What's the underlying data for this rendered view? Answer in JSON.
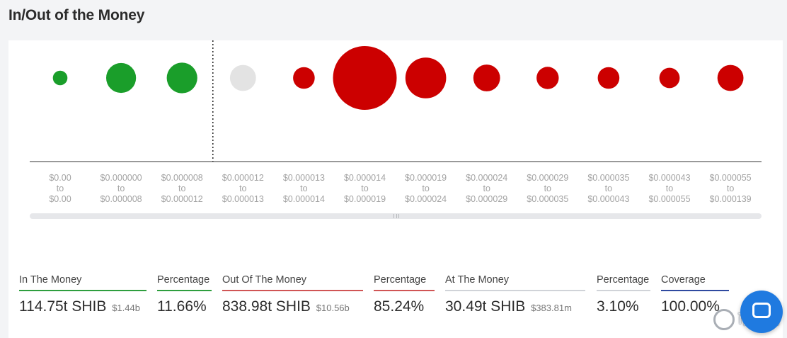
{
  "header": {
    "title": "In/Out of the Money"
  },
  "colors": {
    "in": "#1a9e2a",
    "out": "#cc0000",
    "at": "#e3e3e3"
  },
  "chart_data": {
    "type": "scatter",
    "chart_kind": "bubble",
    "x_categories": [
      {
        "from": "$0.00",
        "to": "$0.00"
      },
      {
        "from": "$0.000000",
        "to": "$0.000008"
      },
      {
        "from": "$0.000008",
        "to": "$0.000012"
      },
      {
        "from": "$0.000012",
        "to": "$0.000013"
      },
      {
        "from": "$0.000013",
        "to": "$0.000014"
      },
      {
        "from": "$0.000014",
        "to": "$0.000019"
      },
      {
        "from": "$0.000019",
        "to": "$0.000024"
      },
      {
        "from": "$0.000024",
        "to": "$0.000029"
      },
      {
        "from": "$0.000029",
        "to": "$0.000035"
      },
      {
        "from": "$0.000035",
        "to": "$0.000043"
      },
      {
        "from": "$0.000043",
        "to": "$0.000055"
      },
      {
        "from": "$0.000055",
        "to": "$0.000139"
      }
    ],
    "range_connector": "to",
    "bubble_sizes_relative": [
      0.23,
      0.47,
      0.48,
      0.41,
      0.34,
      1.0,
      0.64,
      0.42,
      0.35,
      0.34,
      0.32,
      0.41
    ],
    "bubble_status": [
      "in",
      "in",
      "in",
      "at",
      "out",
      "out",
      "out",
      "out",
      "out",
      "out",
      "out",
      "out"
    ],
    "current_price_marker_after_index": 2,
    "grid": false,
    "legend": "none"
  },
  "scrollbar": {
    "grip": "|||"
  },
  "stats": {
    "in_the_money": {
      "label": "In The Money",
      "value": "114.75t SHIB",
      "usd": "$1.44b"
    },
    "in_percentage": {
      "label": "Percentage",
      "value": "11.66%"
    },
    "out_of_the_money": {
      "label": "Out Of The Money",
      "value": "838.98t SHIB",
      "usd": "$10.56b"
    },
    "out_percentage": {
      "label": "Percentage",
      "value": "85.24%"
    },
    "at_the_money": {
      "label": "At The Money",
      "value": "30.49t SHIB",
      "usd": "$383.81m"
    },
    "at_percentage": {
      "label": "Percentage",
      "value": "3.10%"
    },
    "coverage": {
      "label": "Coverage",
      "value": "100.00%"
    }
  },
  "watermark": {
    "text": "币圈网",
    "icon": "swirl-logo-icon"
  },
  "help": {
    "icon": "chat-bubble-icon"
  }
}
